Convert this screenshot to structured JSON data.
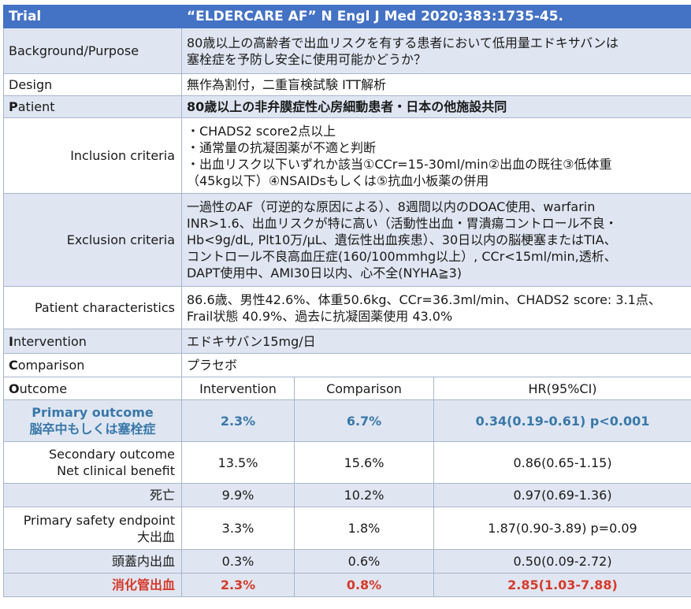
{
  "header": {
    "label": "Trial",
    "citation": "“ELDERCARE AF” N Engl J Med 2020;383:1735-45."
  },
  "rows": {
    "background": {
      "label": "Background/Purpose",
      "lines": [
        "80歳以上の高齢者で出血リスクを有する患者において低用量エドキサバンは",
        "塞栓症を予防し安全に使用可能かどうか？"
      ]
    },
    "design": {
      "label": "Design",
      "text": "無作為割付，二重盲検試験 ITT解析"
    },
    "patient": {
      "label_cap": "P",
      "label_rest": "atient",
      "text": "80歳以上の非弁膜症性心房細動患者・日本の他施設共同"
    },
    "inclusion": {
      "label": "Inclusion criteria",
      "lines": [
        "・CHADS2 score2点以上",
        "・通常量の抗凝固薬が不適と判断",
        "・出血リスク以下いずれか該当①CCr=15-30ml/min②出血の既往③低体重",
        "（45kg以下）④NSAIDsもしくは⑤抗血小板薬の併用"
      ]
    },
    "exclusion": {
      "label": "Exclusion criteria",
      "lines": [
        "一過性のAF（可逆的な原因による）、8週間以内のDOAC使用、warfarin",
        "INR>1.6、出血リスクが特に高い（活動性出血・胃潰瘍コントロール不良・",
        "Hb<9g/dL, Plt10万/μL、遺伝性出血疾患）、30日以内の脳梗塞またはTIA、",
        "コントロール不良高血圧症(160/100mmhg以上）, CCr<15ml/min,透析、",
        "DAPT使用中、AMI30日以内、心不全(NYHA≧3)"
      ]
    },
    "characteristics": {
      "label": "Patient characteristics",
      "lines": [
        "86.6歳、男性42.6%、体重50.6kg、CCr=36.3ml/min、CHADS2 score: 3.1点、",
        "Frail状態 40.9%、過去に抗凝固薬使用 43.0%"
      ]
    },
    "intervention": {
      "label_cap": "I",
      "label_rest": "ntervention",
      "text": "エドキサバン15mg/日"
    },
    "comparison": {
      "label_cap": "C",
      "label_rest": "omparison",
      "text": "プラセボ"
    }
  },
  "outcome": {
    "label_cap": "O",
    "label_rest": "utcome",
    "columns": [
      "Intervention",
      "Comparison",
      "HR(95%CI)"
    ],
    "results": [
      {
        "label_lines": [
          "Primary outcome",
          "脳卒中もしくは塞栓症"
        ],
        "intervention": "2.3%",
        "comparison": "6.7%",
        "hr": "0.34(0.19-0.61) p<0.001"
      },
      {
        "label_lines": [
          "Secondary outcome",
          "Net clinical benefit"
        ],
        "intervention": "13.5%",
        "comparison": "15.6%",
        "hr": "0.86(0.65-1.15)"
      },
      {
        "label_lines": [
          "死亡"
        ],
        "intervention": "9.9%",
        "comparison": "10.2%",
        "hr": "0.97(0.69-1.36)"
      },
      {
        "label_lines": [
          "Primary safety endpoint",
          "大出血"
        ],
        "intervention": "3.3%",
        "comparison": "1.8%",
        "hr": "1.87(0.90-3.89) p=0.09"
      },
      {
        "label_lines": [
          "頭蓋内出血"
        ],
        "intervention": "0.3%",
        "comparison": "0.6%",
        "hr": "0.50(0.09-2.72)"
      },
      {
        "label_lines": [
          "消化管出血"
        ],
        "intervention": "2.3%",
        "comparison": "0.8%",
        "hr": "2.85(1.03-7.88)"
      }
    ]
  },
  "colors": {
    "header_bg": "#4472c4",
    "band_bg": "#dfe6f2",
    "primary_text": "#3a78a8",
    "gi_bleed_text": "#d63a2a"
  }
}
